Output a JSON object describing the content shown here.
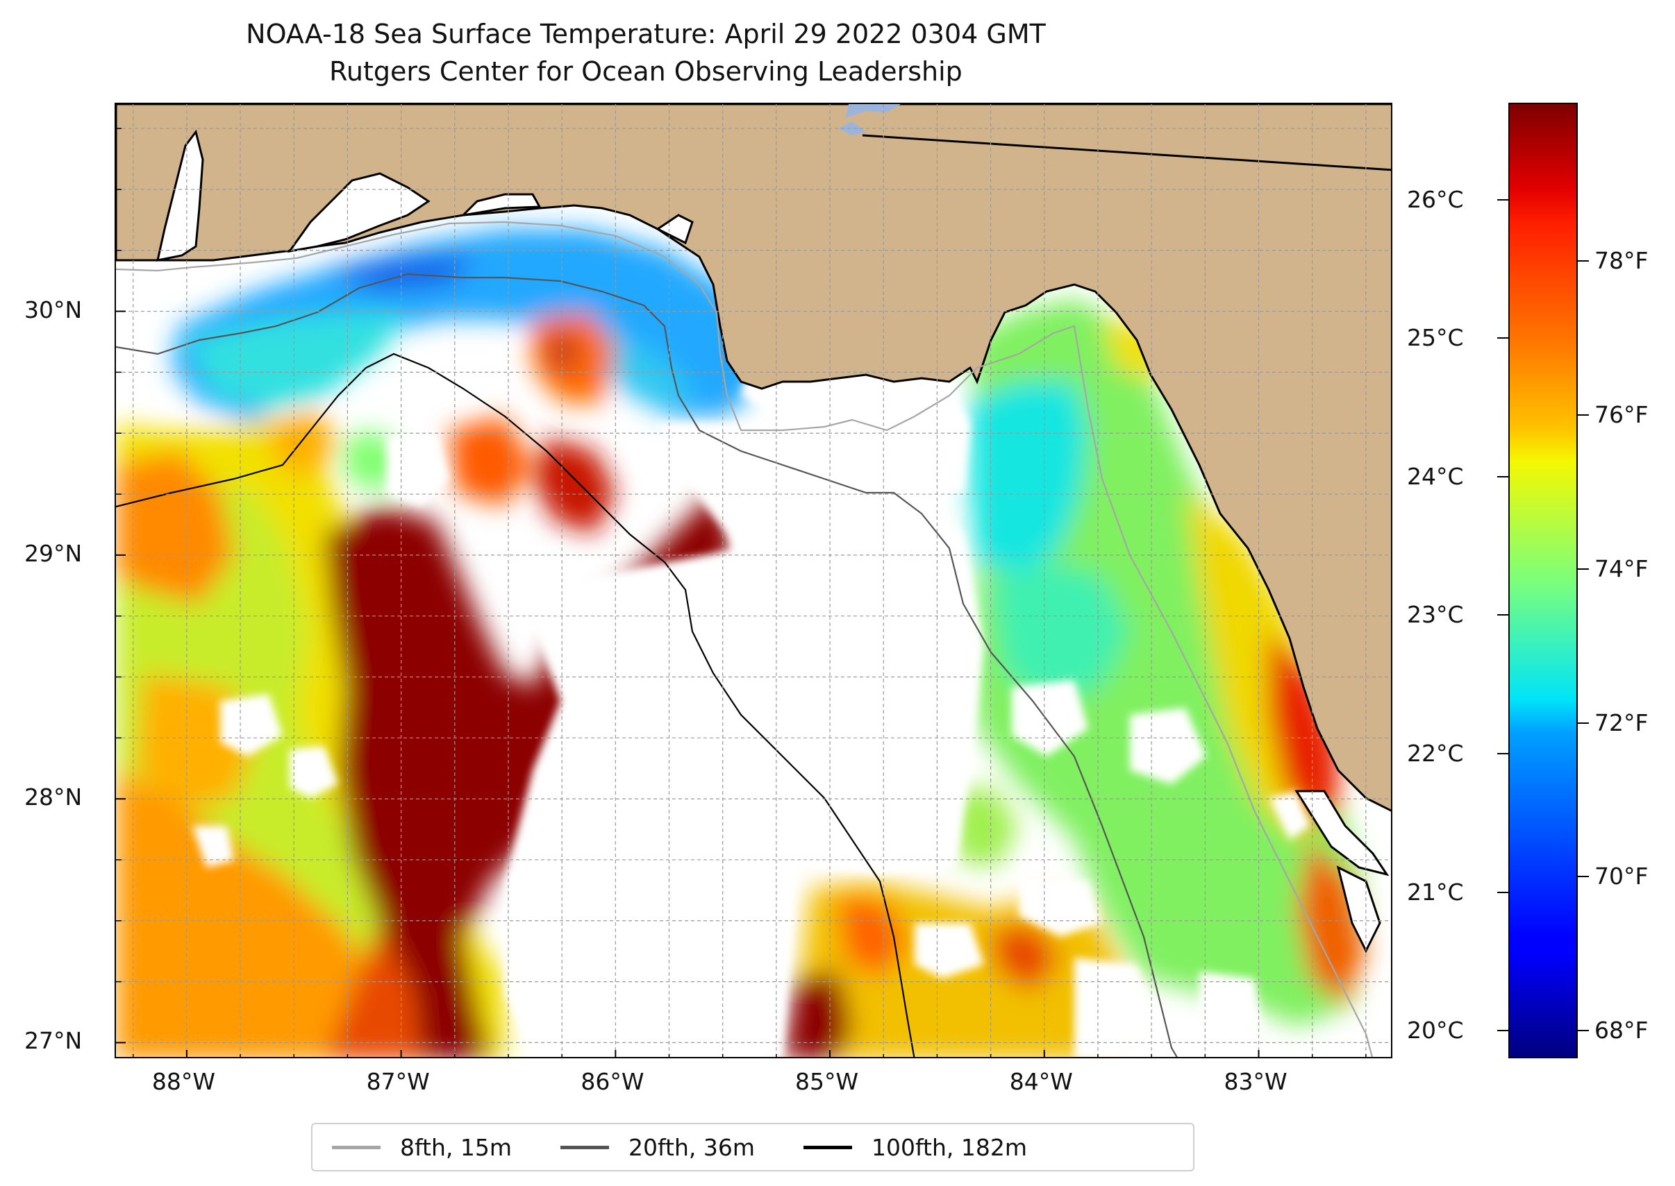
{
  "title": "NOAA-18 Sea Surface Temperature: April 29 2022 0304 GMT",
  "subtitle": "Rutgers Center for Ocean Observing Leadership",
  "map": {
    "lon_range": [
      -88.33,
      -82.37
    ],
    "lat_range": [
      26.93,
      30.85
    ],
    "longitude_ticks": [
      {
        "value": -88,
        "label": "88°W"
      },
      {
        "value": -87,
        "label": "87°W"
      },
      {
        "value": -86,
        "label": "86°W"
      },
      {
        "value": -85,
        "label": "85°W"
      },
      {
        "value": -84,
        "label": "84°W"
      },
      {
        "value": -83,
        "label": "83°W"
      }
    ],
    "latitude_ticks": [
      {
        "value": 27,
        "label": "27°N"
      },
      {
        "value": 28,
        "label": "28°N"
      },
      {
        "value": 29,
        "label": "29°N"
      },
      {
        "value": 30,
        "label": "30°N"
      }
    ],
    "grid": "dashed",
    "colors": {
      "land": "#d2b48c",
      "ocean_no_data": "#ffffff",
      "lake": "#9bb4dc"
    }
  },
  "colorbar": {
    "colormap": "jet",
    "range_celsius": [
      19.8,
      26.7
    ],
    "celsius_ticks": [
      {
        "value": 20,
        "label": "20°C"
      },
      {
        "value": 21,
        "label": "21°C"
      },
      {
        "value": 22,
        "label": "22°C"
      },
      {
        "value": 23,
        "label": "23°C"
      },
      {
        "value": 24,
        "label": "24°C"
      },
      {
        "value": 25,
        "label": "25°C"
      },
      {
        "value": 26,
        "label": "26°C"
      }
    ],
    "fahrenheit_ticks": [
      {
        "value": 68,
        "label": "68°F"
      },
      {
        "value": 70,
        "label": "70°F"
      },
      {
        "value": 72,
        "label": "72°F"
      },
      {
        "value": 74,
        "label": "74°F"
      },
      {
        "value": 76,
        "label": "76°F"
      },
      {
        "value": 78,
        "label": "78°F"
      }
    ]
  },
  "legend": {
    "placement": "bottom-center",
    "items": [
      {
        "label": "8fth, 15m",
        "color": "#a6a6a6"
      },
      {
        "label": "20fth, 36m",
        "color": "#555555"
      },
      {
        "label": "100fth, 182m",
        "color": "#000000"
      }
    ]
  }
}
